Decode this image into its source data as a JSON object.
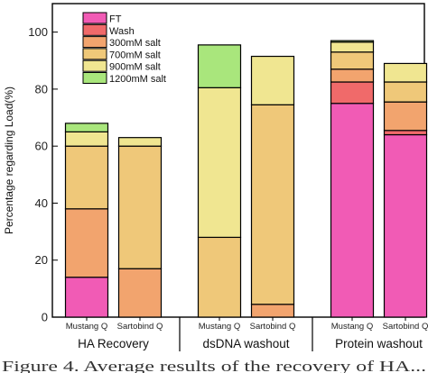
{
  "chart_data": {
    "type": "stacked-bar",
    "ylabel": "Percentage regarding Load(%)",
    "ylim": [
      0,
      110
    ],
    "yticks": [
      0,
      20,
      40,
      60,
      80,
      100
    ],
    "grid": false,
    "legend_position": "top-left",
    "series": [
      {
        "name": "FT",
        "color": "#f15bb5"
      },
      {
        "name": "Wash",
        "color": "#f06a6a"
      },
      {
        "name": "300mM salt",
        "color": "#f2a46e"
      },
      {
        "name": "700mM salt",
        "color": "#efc879"
      },
      {
        "name": "900mM salt",
        "color": "#f0e691"
      },
      {
        "name": "1200mM salt",
        "color": "#a9e67c"
      }
    ],
    "groups": [
      {
        "label": "HA Recovery",
        "bars": [
          {
            "label": "Mustang Q",
            "values": {
              "FT": 14,
              "300mM salt": 24,
              "700mM salt": 22,
              "900mM salt": 5,
              "1200mM salt": 3
            }
          },
          {
            "label": "Sartobind Q",
            "values": {
              "300mM salt": 17,
              "700mM salt": 43,
              "900mM salt": 3
            }
          }
        ]
      },
      {
        "label": "dsDNA washout",
        "bars": [
          {
            "label": "Mustang Q",
            "values": {
              "700mM salt": 28,
              "900mM salt": 52.5,
              "1200mM salt": 15
            }
          },
          {
            "label": "Sartobind Q",
            "values": {
              "300mM salt": 4.5,
              "700mM salt": 70,
              "900mM salt": 17
            }
          }
        ]
      },
      {
        "label": "Protein washout",
        "bars": [
          {
            "label": "Mustang Q",
            "values": {
              "FT": 75,
              "Wash": 7.5,
              "300mM salt": 4.5,
              "700mM salt": 6,
              "900mM salt": 3.5,
              "1200mM salt": 0.5
            }
          },
          {
            "label": "Sartobind Q",
            "values": {
              "FT": 64,
              "Wash": 1.5,
              "300mM salt": 10,
              "700mM salt": 7,
              "900mM salt": 6.5
            }
          }
        ]
      }
    ]
  },
  "caption_fragment": "Figure 4. Average results of the recovery of HA..."
}
